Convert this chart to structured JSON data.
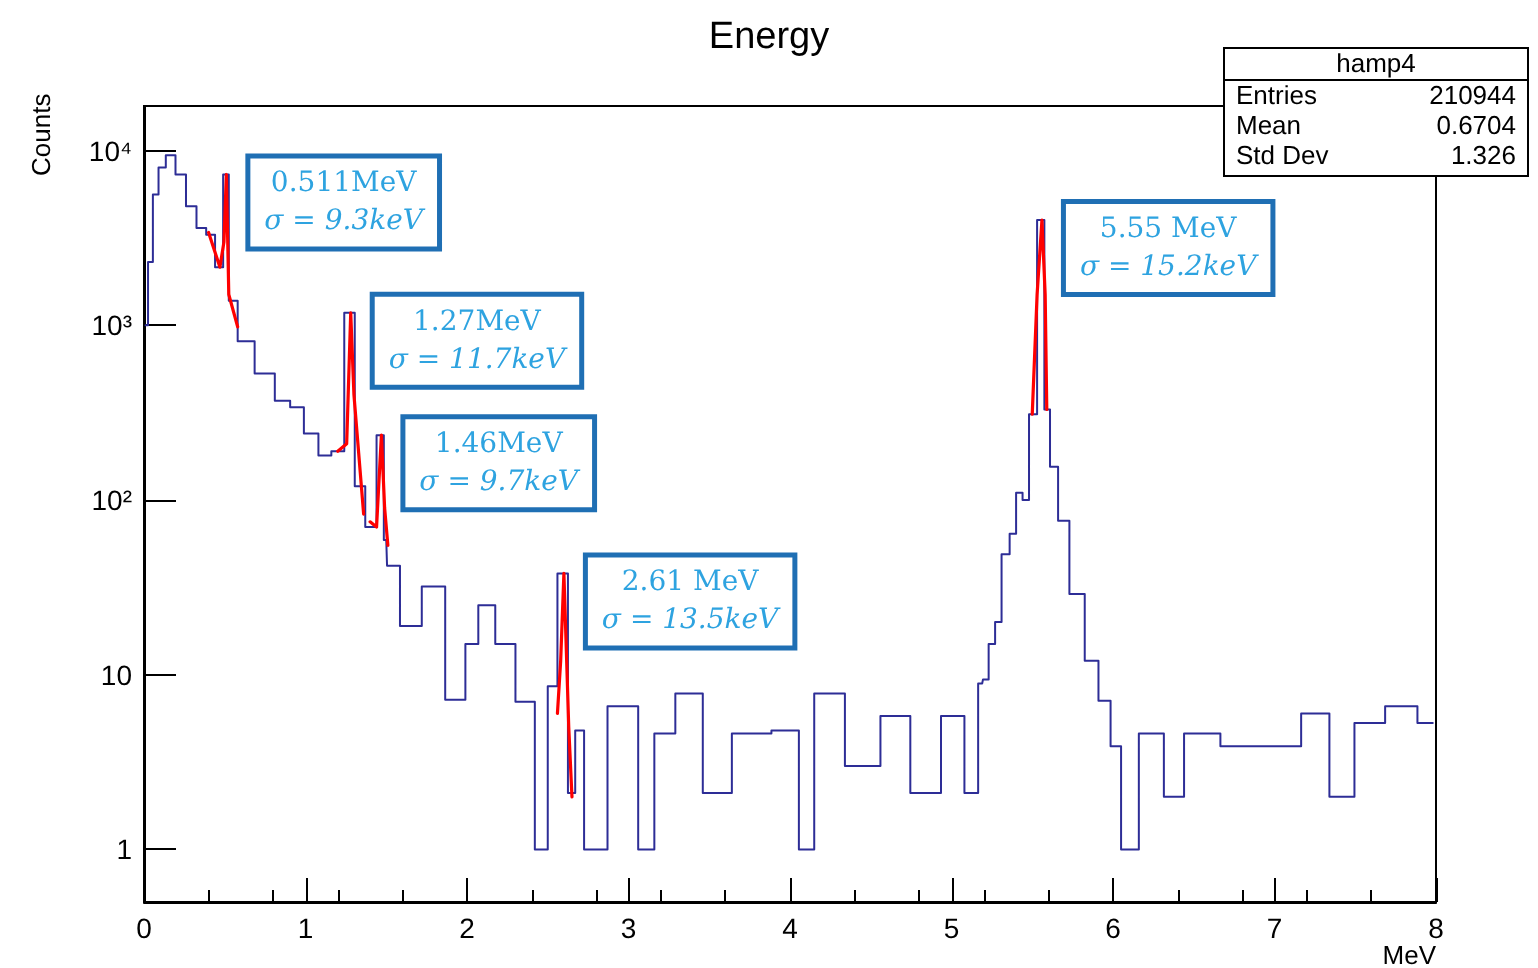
{
  "chart_data": {
    "type": "step",
    "title": "Energy",
    "xlabel": "MeV",
    "ylabel": "Counts",
    "log": "y",
    "grid": false,
    "xlim": [
      0,
      8
    ],
    "xticks": [
      0,
      1,
      2,
      3,
      4,
      5,
      6,
      7,
      8
    ],
    "ylim": [
      0.5,
      18000
    ],
    "yticks": [
      1,
      10,
      {
        "value": 100,
        "label": "10²"
      },
      {
        "value": 1000,
        "label": "10³"
      },
      {
        "value": 10000,
        "label": "10⁴"
      }
    ],
    "series": [
      {
        "type": "step",
        "color": "#2d2d96",
        "x": [
          0.01,
          0.04,
          0.07,
          0.11,
          0.16,
          0.23,
          0.29,
          0.36,
          0.41,
          0.47,
          0.51,
          0.54,
          0.62,
          0.75,
          0.87,
          0.94,
          1.04,
          1.12,
          1.2,
          1.28,
          1.33,
          1.41,
          1.47,
          1.5,
          1.51,
          1.66,
          1.78,
          1.95,
          2.03,
          2.11,
          2.24,
          2.36,
          2.48,
          2.52,
          2.6,
          2.65,
          2.69,
          2.76,
          2.98,
          3.14,
          3.18,
          3.4,
          3.52,
          3.76,
          4.01,
          4.1,
          4.2,
          4.48,
          4.64,
          4.85,
          5.02,
          5.14,
          5.19,
          5.2,
          5.26,
          5.28,
          5.34,
          5.38,
          5.42,
          5.46,
          5.5,
          5.56,
          5.59,
          5.63,
          5.69,
          5.77,
          5.88,
          5.94,
          6.03,
          6.07,
          6.25,
          6.38,
          6.5,
          6.83,
          7.06,
          7.27,
          7.41,
          7.58,
          7.79,
          7.98
        ],
        "values": [
          1000,
          2300,
          5600,
          8000,
          9400,
          7300,
          4800,
          3600,
          3300,
          2150,
          7300,
          1380,
          810,
          530,
          370,
          340,
          240,
          180,
          190,
          1180,
          120,
          70,
          235,
          59,
          42,
          19,
          32,
          7.2,
          15,
          25,
          15,
          7,
          1,
          8.6,
          38,
          2.1,
          4.8,
          1,
          6.6,
          1,
          4.6,
          7.8,
          2.1,
          4.6,
          4.8,
          1,
          7.8,
          3,
          5.8,
          2.1,
          5.8,
          2.1,
          8.9,
          9.4,
          15,
          20,
          49,
          64,
          110,
          100,
          310,
          4000,
          330,
          155,
          76,
          29,
          12,
          7.1,
          3.9,
          1,
          4.6,
          2,
          4.6,
          3.9,
          3.9,
          6,
          2,
          5.3,
          6.6,
          5.3
        ]
      },
      {
        "type": "line",
        "color": "#ff0000",
        "x": [
          0.4,
          0.47,
          0.495,
          0.51,
          0.525,
          0.58
        ],
        "values": [
          3400,
          2150,
          3000,
          7300,
          1500,
          980
        ]
      },
      {
        "type": "line",
        "color": "#ff0000",
        "x": [
          1.2,
          1.255,
          1.28,
          1.3,
          1.36
        ],
        "values": [
          190,
          210,
          1180,
          400,
          83
        ]
      },
      {
        "type": "line",
        "color": "#ff0000",
        "x": [
          1.4,
          1.44,
          1.47,
          1.49,
          1.51
        ],
        "values": [
          75,
          70,
          235,
          90,
          55
        ]
      },
      {
        "type": "line",
        "color": "#ff0000",
        "x": [
          2.56,
          2.58,
          2.6,
          2.63,
          2.65
        ],
        "values": [
          6,
          12,
          38,
          5,
          2
        ]
      },
      {
        "type": "line",
        "color": "#ff0000",
        "x": [
          5.5,
          5.53,
          5.56,
          5.58,
          5.59
        ],
        "values": [
          310,
          1500,
          4000,
          1500,
          330
        ]
      }
    ],
    "annotations": [
      {
        "text": "0.511MeV\nσ = 9.3keV",
        "x": 0.51,
        "y": 7300
      },
      {
        "text": "1.27MeV\nσ = 11.7keV",
        "x": 1.28,
        "y": 1180
      },
      {
        "text": "1.46MeV\nσ = 9.7keV",
        "x": 1.47,
        "y": 235
      },
      {
        "text": "2.61 MeV\nσ = 13.5keV",
        "x": 2.6,
        "y": 38
      },
      {
        "text": "5.55 MeV\nσ = 15.2keV",
        "x": 5.56,
        "y": 4000
      },
      "hamp4",
      "Entries 210944",
      "Mean 0.6704",
      "Std Dev 1.326"
    ]
  }
}
